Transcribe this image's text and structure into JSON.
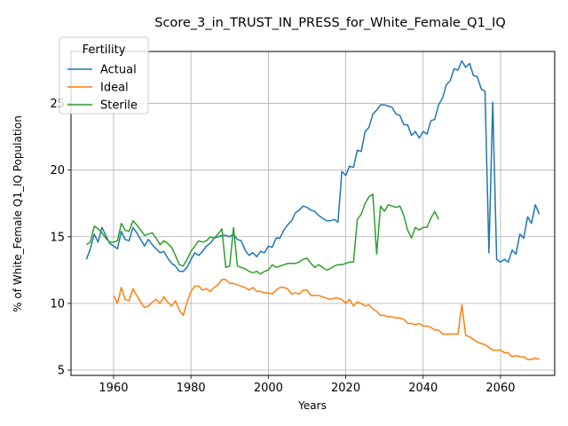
{
  "chart_data": {
    "type": "line",
    "title": "Score_3_in_TRUST_IN_PRESS_for_White_Female_Q1_IQ",
    "xlabel": "Years",
    "ylabel": "% of White_Female Q1_IQ Population",
    "xlim": [
      1949,
      2074
    ],
    "ylim": [
      4.6,
      28.9
    ],
    "xticks": [
      1960,
      1980,
      2000,
      2020,
      2040,
      2060
    ],
    "yticks": [
      5,
      10,
      15,
      20,
      25
    ],
    "grid": true,
    "legend": {
      "title": "Fertility",
      "placement": "top-left"
    },
    "series": [
      {
        "name": "Actual",
        "color": "#1f77b4",
        "x": [
          1953,
          1954,
          1955,
          1956,
          1957,
          1958,
          1959,
          1960,
          1961,
          1962,
          1963,
          1964,
          1965,
          1966,
          1967,
          1968,
          1969,
          1970,
          1971,
          1972,
          1973,
          1974,
          1975,
          1976,
          1977,
          1978,
          1979,
          1980,
          1981,
          1982,
          1983,
          1984,
          1985,
          1986,
          1987,
          1988,
          1989,
          1990,
          1991,
          1992,
          1993,
          1994,
          1995,
          1996,
          1997,
          1998,
          1999,
          2000,
          2001,
          2002,
          2003,
          2004,
          2005,
          2006,
          2007,
          2008,
          2009,
          2010,
          2011,
          2012,
          2013,
          2014,
          2015,
          2016,
          2017,
          2018,
          2019,
          2020,
          2021,
          2022,
          2023,
          2024,
          2025,
          2026,
          2027,
          2028,
          2029,
          2030,
          2031,
          2032,
          2033,
          2034,
          2035,
          2036,
          2037,
          2038,
          2039,
          2040,
          2041,
          2042,
          2043,
          2044,
          2045,
          2046,
          2047,
          2048,
          2049,
          2050,
          2051,
          2052,
          2053,
          2054,
          2055,
          2056,
          2057,
          2058,
          2059,
          2060,
          2061,
          2062,
          2063,
          2064,
          2065,
          2066,
          2067,
          2068,
          2069,
          2070
        ],
        "y": [
          13.3,
          14.1,
          15.2,
          14.6,
          15.7,
          15.1,
          14.5,
          14.3,
          14.1,
          15.4,
          14.8,
          14.7,
          15.7,
          15.3,
          14.8,
          14.3,
          14.8,
          14.4,
          14.1,
          13.8,
          13.9,
          13.4,
          13.0,
          12.8,
          12.4,
          12.4,
          12.7,
          13.3,
          13.8,
          13.6,
          13.9,
          14.3,
          14.5,
          14.9,
          15.0,
          15.1,
          15.1,
          15.0,
          15.2,
          14.8,
          14.7,
          14.0,
          13.6,
          13.8,
          13.5,
          13.9,
          13.8,
          14.3,
          14.2,
          14.9,
          14.9,
          15.5,
          15.9,
          16.2,
          16.8,
          17.0,
          17.3,
          17.2,
          17.0,
          16.9,
          16.6,
          16.4,
          16.2,
          16.2,
          16.3,
          16.1,
          19.9,
          19.6,
          20.3,
          20.2,
          21.5,
          21.4,
          22.9,
          23.2,
          24.2,
          24.5,
          24.9,
          24.9,
          24.8,
          24.7,
          24.2,
          24.1,
          23.4,
          23.4,
          22.6,
          22.9,
          22.4,
          22.9,
          22.7,
          23.7,
          23.8,
          24.9,
          25.4,
          26.4,
          26.7,
          27.6,
          27.5,
          28.2,
          27.7,
          28.0,
          27.1,
          27.0,
          26.1,
          25.9,
          13.8,
          25.1,
          13.3,
          13.1,
          13.3,
          13.1,
          14.0,
          13.7,
          15.2,
          14.9,
          16.5,
          16.0,
          17.4,
          16.7
        ]
      },
      {
        "name": "Ideal",
        "color": "#ff7f0e",
        "x": [
          1960,
          1961,
          1962,
          1963,
          1964,
          1965,
          1966,
          1967,
          1968,
          1969,
          1970,
          1971,
          1972,
          1973,
          1974,
          1975,
          1976,
          1977,
          1978,
          1979,
          1980,
          1981,
          1982,
          1983,
          1984,
          1985,
          1986,
          1987,
          1988,
          1989,
          1990,
          1991,
          1992,
          1993,
          1994,
          1995,
          1996,
          1997,
          1998,
          1999,
          2000,
          2001,
          2002,
          2003,
          2004,
          2005,
          2006,
          2007,
          2008,
          2009,
          2010,
          2011,
          2012,
          2013,
          2014,
          2015,
          2016,
          2017,
          2018,
          2019,
          2020,
          2021,
          2022,
          2023,
          2024,
          2025,
          2026,
          2027,
          2028,
          2029,
          2030,
          2031,
          2032,
          2033,
          2034,
          2035,
          2036,
          2037,
          2038,
          2039,
          2040,
          2041,
          2042,
          2043,
          2044,
          2045,
          2046,
          2047,
          2048,
          2049,
          2050,
          2051,
          2052,
          2053,
          2054,
          2055,
          2056,
          2057,
          2058,
          2059,
          2060,
          2061,
          2062,
          2063,
          2064,
          2065,
          2066,
          2067,
          2068,
          2069,
          2070
        ],
        "y": [
          10.6,
          10.0,
          11.2,
          10.3,
          10.2,
          11.1,
          10.6,
          10.1,
          9.7,
          9.8,
          10.1,
          10.3,
          10.0,
          10.5,
          10.1,
          9.8,
          10.2,
          9.5,
          9.1,
          10.1,
          10.9,
          11.3,
          11.3,
          11.0,
          11.1,
          10.9,
          11.2,
          11.4,
          11.8,
          11.8,
          11.5,
          11.5,
          11.4,
          11.3,
          11.2,
          11.0,
          11.2,
          10.9,
          10.9,
          10.8,
          10.8,
          10.7,
          11.0,
          11.2,
          11.2,
          11.1,
          10.7,
          10.8,
          10.7,
          11.0,
          11.0,
          10.6,
          10.6,
          10.6,
          10.5,
          10.4,
          10.3,
          10.4,
          10.4,
          10.3,
          10.0,
          10.3,
          9.8,
          10.1,
          10.0,
          9.8,
          9.9,
          9.6,
          9.4,
          9.1,
          9.1,
          9.0,
          9.0,
          8.9,
          8.9,
          8.8,
          8.5,
          8.5,
          8.4,
          8.5,
          8.3,
          8.3,
          8.2,
          8.0,
          8.0,
          7.7,
          7.7,
          7.7,
          7.7,
          7.7,
          9.9,
          7.6,
          7.5,
          7.3,
          7.1,
          7.0,
          6.9,
          6.7,
          6.5,
          6.5,
          6.5,
          6.3,
          6.3,
          6.0,
          6.1,
          6.0,
          6.0,
          5.8,
          5.8,
          5.9,
          5.8
        ]
      },
      {
        "name": "Sterile",
        "color": "#2ca02c",
        "x": [
          1953,
          1954,
          1955,
          1956,
          1957,
          1958,
          1959,
          1960,
          1961,
          1962,
          1963,
          1964,
          1965,
          1966,
          1967,
          1968,
          1969,
          1970,
          1971,
          1972,
          1973,
          1974,
          1975,
          1976,
          1977,
          1978,
          1979,
          1980,
          1981,
          1982,
          1983,
          1984,
          1985,
          1986,
          1987,
          1988,
          1989,
          1990,
          1991,
          1992,
          1993,
          1994,
          1995,
          1996,
          1997,
          1998,
          1999,
          2000,
          2001,
          2002,
          2003,
          2004,
          2005,
          2006,
          2007,
          2008,
          2009,
          2010,
          2011,
          2012,
          2013,
          2014,
          2015,
          2016,
          2017,
          2018,
          2019,
          2020,
          2021,
          2022,
          2023,
          2024,
          2025,
          2026,
          2027,
          2028,
          2029,
          2030,
          2031,
          2032,
          2033,
          2034,
          2035,
          2036,
          2037,
          2038,
          2039,
          2040,
          2041,
          2042,
          2043,
          2044
        ],
        "y": [
          14.4,
          14.6,
          15.8,
          15.6,
          15.3,
          14.9,
          14.6,
          14.6,
          14.7,
          16.0,
          15.5,
          15.4,
          16.2,
          15.9,
          15.5,
          15.1,
          15.2,
          15.3,
          14.9,
          14.4,
          14.7,
          14.5,
          14.2,
          13.6,
          12.9,
          12.8,
          13.3,
          13.9,
          14.3,
          14.7,
          14.6,
          14.7,
          15.0,
          14.9,
          15.2,
          15.6,
          12.7,
          12.8,
          15.7,
          12.8,
          12.7,
          12.6,
          12.4,
          12.3,
          12.4,
          12.2,
          12.4,
          12.5,
          12.9,
          12.7,
          12.8,
          12.9,
          13.0,
          13.0,
          13.0,
          13.1,
          13.3,
          13.4,
          13.0,
          12.7,
          12.9,
          12.7,
          12.5,
          12.6,
          12.8,
          12.9,
          12.9,
          13.0,
          13.1,
          13.1,
          16.3,
          16.7,
          17.5,
          18.0,
          18.2,
          13.7,
          17.3,
          16.9,
          17.4,
          17.3,
          17.2,
          17.3,
          16.6,
          15.5,
          14.9,
          15.7,
          15.5,
          15.7,
          15.7,
          16.4,
          16.9,
          16.3
        ]
      }
    ]
  }
}
